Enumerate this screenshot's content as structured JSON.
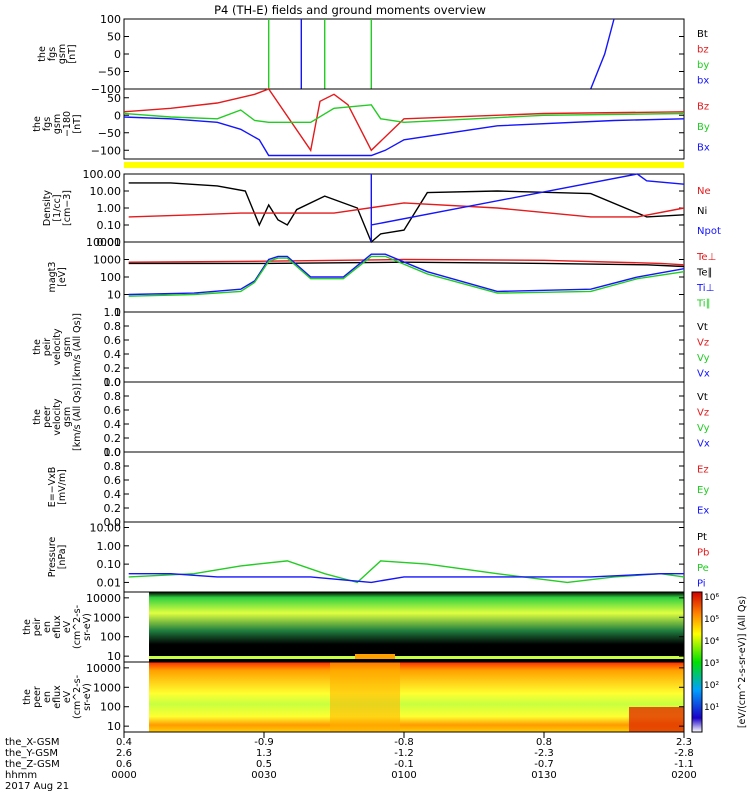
{
  "title": "P4 (TH-E) fields and ground moments overview",
  "date_label": "2017 Aug 21",
  "colors": {
    "black": "#000000",
    "red": "#e41a1c",
    "green": "#22cc22",
    "blue": "#1414ff",
    "yellow": "#ffff00"
  },
  "chart_data": [
    {
      "type": "line",
      "panel": "fgs",
      "ylabel": [
        "the",
        "fgs",
        "gsm",
        "[nT]"
      ],
      "ylim": [
        -100,
        100
      ],
      "yticks": [
        "100",
        "50",
        "0",
        "−50",
        "−100"
      ],
      "legend": [
        {
          "label": "Bt",
          "color": "#000000"
        },
        {
          "label": "bz",
          "color": "#e41a1c"
        },
        {
          "label": "by",
          "color": "#22cc22"
        },
        {
          "label": "bx",
          "color": "#1414ff"
        }
      ],
      "series": [
        {
          "name": "by",
          "x": [
            "00:31",
            "00:31",
            "00:31"
          ],
          "y": [
            -100,
            100,
            -100
          ]
        },
        {
          "name": "bx",
          "x": [
            "00:38",
            "00:38",
            "00:38"
          ],
          "y": [
            -100,
            100,
            -100
          ]
        },
        {
          "name": "by",
          "x": [
            "00:43",
            "00:43",
            "00:43"
          ],
          "y": [
            -100,
            100,
            -100
          ]
        },
        {
          "name": "by",
          "x": [
            "00:53",
            "00:53",
            "00:53"
          ],
          "y": [
            -100,
            100,
            -100
          ]
        },
        {
          "name": "bx",
          "x": [
            "01:40",
            "01:43",
            "01:45"
          ],
          "y": [
            -100,
            0,
            100
          ]
        }
      ]
    },
    {
      "type": "line",
      "panel": "fgs_m180",
      "ylabel": [
        "the",
        "fgs",
        "gsm",
        "−180",
        "[nT]"
      ],
      "ylim": [
        -125,
        75
      ],
      "yticks": [
        "50",
        "0",
        "−50",
        "−100"
      ],
      "legend": [
        {
          "label": "Bz",
          "color": "#e41a1c"
        },
        {
          "label": "By",
          "color": "#22cc22"
        },
        {
          "label": "Bx",
          "color": "#1414ff"
        }
      ],
      "series": [
        {
          "name": "Bz",
          "x": [
            "00:00",
            "00:10",
            "00:20",
            "00:28",
            "00:31",
            "00:40",
            "00:42",
            "00:45",
            "00:48",
            "00:53",
            "01:00",
            "01:30",
            "02:00"
          ],
          "y": [
            10,
            20,
            35,
            60,
            75,
            -100,
            40,
            60,
            30,
            -100,
            -10,
            5,
            10
          ]
        },
        {
          "name": "By",
          "x": [
            "00:00",
            "00:10",
            "00:20",
            "00:25",
            "00:28",
            "00:31",
            "00:40",
            "00:45",
            "00:53",
            "00:55",
            "01:00",
            "01:30",
            "02:00"
          ],
          "y": [
            5,
            -5,
            -10,
            15,
            -15,
            -20,
            -20,
            20,
            30,
            -10,
            -20,
            0,
            5
          ]
        },
        {
          "name": "Bx",
          "x": [
            "00:00",
            "00:10",
            "00:20",
            "00:25",
            "00:29",
            "00:31",
            "00:53",
            "00:56",
            "01:00",
            "01:20",
            "01:45",
            "02:00"
          ],
          "y": [
            -5,
            -10,
            -20,
            -40,
            -70,
            -115,
            -115,
            -100,
            -70,
            -30,
            -15,
            -10
          ]
        }
      ]
    },
    {
      "type": "line",
      "panel": "density",
      "ylabel": [
        "Density",
        "[1/cc]",
        "[cm−3]"
      ],
      "ylim": [
        0.01,
        100
      ],
      "scale": "log",
      "yticks": [
        "100.00",
        "10.00",
        "1.00",
        "0.10",
        "0.01"
      ],
      "legend": [
        {
          "label": "Ne",
          "color": "#e41a1c"
        },
        {
          "label": "Ni",
          "color": "#000000"
        },
        {
          "label": "Npot",
          "color": "#1414ff"
        }
      ],
      "series": [
        {
          "name": "Ni",
          "x": [
            "00:01",
            "00:10",
            "00:20",
            "00:26",
            "00:29",
            "00:31",
            "00:33",
            "00:35",
            "00:37",
            "00:43",
            "00:50",
            "00:53",
            "00:55",
            "01:00",
            "01:05",
            "01:20",
            "01:40",
            "01:52",
            "02:00"
          ],
          "y": [
            30,
            30,
            20,
            10,
            0.1,
            1.5,
            0.2,
            0.1,
            0.8,
            5,
            1,
            0.01,
            0.03,
            0.05,
            8,
            10,
            7,
            0.3,
            0.4
          ]
        },
        {
          "name": "Ne",
          "x": [
            "00:01",
            "00:15",
            "00:25",
            "00:35",
            "00:45",
            "01:00",
            "01:20",
            "01:40",
            "01:50",
            "02:00"
          ],
          "y": [
            0.3,
            0.4,
            0.5,
            0.5,
            0.5,
            2,
            1,
            0.3,
            0.3,
            1
          ]
        },
        {
          "name": "Npot",
          "x": [
            "00:53",
            "00:53",
            "00:53",
            "01:50",
            "01:52",
            "02:00"
          ],
          "y": [
            100,
            0.01,
            0.1,
            100,
            40,
            25
          ]
        }
      ]
    },
    {
      "type": "line",
      "panel": "temperature",
      "ylabel": [
        "magt3",
        "[eV]"
      ],
      "ylim": [
        1,
        10000
      ],
      "scale": "log",
      "yticks": [
        "10000",
        "1000",
        "100",
        "10",
        "1"
      ],
      "legend": [
        {
          "label": "Te⊥",
          "color": "#e41a1c"
        },
        {
          "label": "Te∥",
          "color": "#000000"
        },
        {
          "label": "Ti⊥",
          "color": "#1414ff"
        },
        {
          "label": "Ti∥",
          "color": "#22cc22"
        }
      ],
      "series": [
        {
          "name": "Te⊥",
          "x": [
            "00:01",
            "00:30",
            "01:00",
            "01:30",
            "01:55",
            "02:00"
          ],
          "y": [
            700,
            800,
            1000,
            900,
            600,
            500
          ]
        },
        {
          "name": "Te∥",
          "x": [
            "00:01",
            "00:30",
            "01:00",
            "01:30",
            "01:52",
            "02:00"
          ],
          "y": [
            600,
            600,
            700,
            600,
            500,
            400
          ]
        },
        {
          "name": "Ti⊥",
          "x": [
            "00:01",
            "00:15",
            "00:25",
            "00:28",
            "00:31",
            "00:33",
            "00:35",
            "00:40",
            "00:47",
            "00:53",
            "00:56",
            "01:05",
            "01:20",
            "01:40",
            "01:50",
            "02:00"
          ],
          "y": [
            10,
            12,
            20,
            60,
            1000,
            1500,
            1500,
            100,
            100,
            2000,
            2000,
            200,
            15,
            20,
            100,
            300
          ]
        },
        {
          "name": "Ti∥",
          "x": [
            "00:01",
            "00:15",
            "00:25",
            "00:28",
            "00:31",
            "00:33",
            "00:35",
            "00:40",
            "00:47",
            "00:53",
            "00:56",
            "01:05",
            "01:20",
            "01:40",
            "01:50",
            "02:00"
          ],
          "y": [
            8,
            10,
            15,
            50,
            800,
            1200,
            1200,
            80,
            80,
            1500,
            1500,
            150,
            12,
            15,
            80,
            200
          ]
        }
      ]
    },
    {
      "type": "line",
      "panel": "peir_velocity",
      "ylabel": [
        "the",
        "peir",
        "velocity",
        "gsm",
        "[km/s (All Qs)]"
      ],
      "ylim": [
        0,
        1
      ],
      "yticks": [
        "1.0",
        "0.8",
        "0.6",
        "0.4",
        "0.2",
        "0.0"
      ],
      "legend": [
        {
          "label": "Vt",
          "color": "#000000"
        },
        {
          "label": "Vz",
          "color": "#e41a1c"
        },
        {
          "label": "Vy",
          "color": "#22cc22"
        },
        {
          "label": "Vx",
          "color": "#1414ff"
        }
      ],
      "series": []
    },
    {
      "type": "line",
      "panel": "peer_velocity",
      "ylabel": [
        "the",
        "peer",
        "velocity",
        "gsm",
        "[km/s (All Qs)]"
      ],
      "ylim": [
        0,
        1
      ],
      "yticks": [
        "1.0",
        "0.8",
        "0.6",
        "0.4",
        "0.2",
        "0.0"
      ],
      "legend": [
        {
          "label": "Vt",
          "color": "#000000"
        },
        {
          "label": "Vz",
          "color": "#e41a1c"
        },
        {
          "label": "Vy",
          "color": "#22cc22"
        },
        {
          "label": "Vx",
          "color": "#1414ff"
        }
      ],
      "series": []
    },
    {
      "type": "line",
      "panel": "efield",
      "ylabel": [
        "E=−VxB",
        "[mV/m]"
      ],
      "ylim": [
        0,
        1
      ],
      "yticks": [
        "1.0",
        "0.8",
        "0.6",
        "0.4",
        "0.2",
        "0.0"
      ],
      "legend": [
        {
          "label": "Ez",
          "color": "#e41a1c"
        },
        {
          "label": "Ey",
          "color": "#22cc22"
        },
        {
          "label": "Ex",
          "color": "#1414ff"
        }
      ],
      "series": []
    },
    {
      "type": "line",
      "panel": "pressure",
      "ylabel": [
        "Pressure",
        "[nPa]"
      ],
      "ylim": [
        0.003,
        20
      ],
      "scale": "log",
      "yticks": [
        "10.00",
        "1.00",
        "0.10",
        "0.01"
      ],
      "legend": [
        {
          "label": "Pt",
          "color": "#000000"
        },
        {
          "label": "Pb",
          "color": "#e41a1c"
        },
        {
          "label": "Pe",
          "color": "#22cc22"
        },
        {
          "label": "Pi",
          "color": "#1414ff"
        }
      ],
      "series": [
        {
          "name": "Pe",
          "x": [
            "00:01",
            "00:15",
            "00:25",
            "00:35",
            "00:43",
            "00:50",
            "00:55",
            "01:05",
            "01:20",
            "01:35",
            "01:45",
            "01:55",
            "02:00"
          ],
          "y": [
            0.02,
            0.03,
            0.08,
            0.15,
            0.03,
            0.01,
            0.15,
            0.1,
            0.03,
            0.01,
            0.02,
            0.03,
            0.02
          ]
        },
        {
          "name": "Pi",
          "x": [
            "00:01",
            "00:10",
            "00:20",
            "00:30",
            "00:40",
            "00:53",
            "01:00",
            "01:10",
            "01:20",
            "01:40",
            "01:55",
            "02:00"
          ],
          "y": [
            0.03,
            0.03,
            0.02,
            0.02,
            0.02,
            0.01,
            0.02,
            0.02,
            0.02,
            0.02,
            0.03,
            0.03
          ]
        }
      ]
    },
    {
      "type": "heatmap",
      "panel": "peir_eflux",
      "ylabel": [
        "the",
        "peir",
        "en",
        "eflux",
        "eV",
        "(cm^2-s-",
        "sr-eV)"
      ],
      "ylim": [
        5,
        20000
      ],
      "scale": "log",
      "yticks": [
        "10000",
        "1000",
        "100",
        "10"
      ]
    },
    {
      "type": "heatmap",
      "panel": "peer_eflux",
      "ylabel": [
        "the",
        "peer",
        "en",
        "eflux",
        "eV",
        "(cm^2-s-",
        "sr-eV)"
      ],
      "ylim": [
        5,
        20000
      ],
      "scale": "log",
      "yticks": [
        "10000",
        "1000",
        "100",
        "10"
      ]
    }
  ],
  "colorbar": {
    "ticks": [
      "10⁶",
      "10⁵",
      "10⁴",
      "10³",
      "10²",
      "10¹"
    ],
    "label": "[eV/(cm^2-s-sr-eV)] (All Qs)"
  },
  "xaxis": {
    "rows": [
      {
        "label": "the_X-GSM",
        "values": [
          "0.4",
          "-0.9",
          "-0.8",
          "0.8",
          "2.3"
        ]
      },
      {
        "label": "the_Y-GSM",
        "values": [
          "2.6",
          "1.3",
          "-1.2",
          "-2.3",
          "-2.8"
        ]
      },
      {
        "label": "the_Z-GSM",
        "values": [
          "0.6",
          "0.5",
          "-0.1",
          "-0.7",
          "-1.1"
        ]
      },
      {
        "label": "hhmm",
        "values": [
          "0000",
          "0030",
          "0100",
          "0130",
          "0200"
        ]
      }
    ]
  }
}
